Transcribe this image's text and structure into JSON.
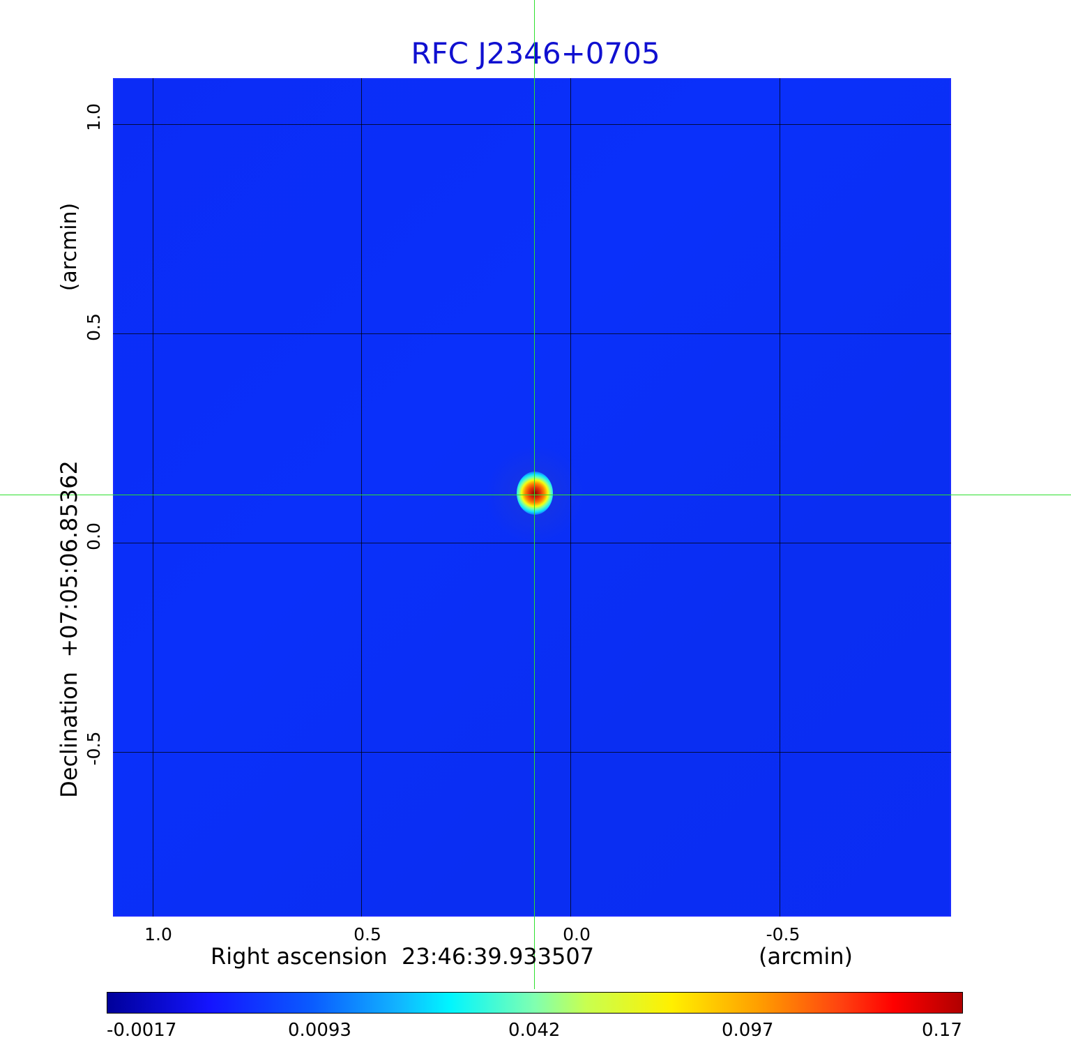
{
  "title": "RFC J2346+0705",
  "x_axis": {
    "label": "Right ascension  23:46:39.933507",
    "unit": "(arcmin)",
    "ticks": [
      "1.0",
      "0.5",
      "0.0",
      "-0.5"
    ]
  },
  "y_axis": {
    "label": "Declination  +07:05:06.85362",
    "unit": "(arcmin)",
    "ticks": [
      "1.0",
      "0.5",
      "0.0",
      "-0.5"
    ]
  },
  "colorbar": {
    "ticks": [
      "-0.0017",
      "0.0093",
      "0.042",
      "0.097",
      "0.17"
    ]
  },
  "colors": {
    "title": "#1010d0",
    "background_map": "#0b2cf6",
    "crosshair": "#2ee02e",
    "grid": "#000000"
  }
}
